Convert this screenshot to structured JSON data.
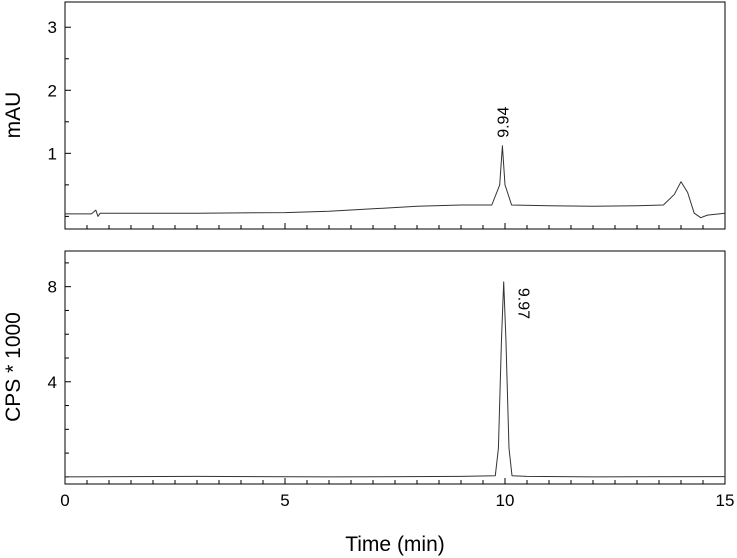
{
  "chart_data": {
    "type": "line",
    "xlabel": "Time (min)",
    "xlim": [
      0,
      15
    ],
    "x_ticks": [
      "0",
      "5",
      "10",
      "15"
    ],
    "panels": [
      {
        "ylabel": "mAU",
        "ylim": [
          -0.2,
          3.4
        ],
        "y_ticks": [
          "1",
          "2",
          "3"
        ],
        "y_tick_values": [
          1,
          2,
          3
        ],
        "peaks": [
          {
            "label": "9.94",
            "time": 9.94,
            "height": 1.12
          }
        ],
        "series": [
          {
            "x": [
              0,
              0.6,
              0.7,
              0.75,
              0.8,
              1.5,
              3,
              5,
              6,
              7,
              8,
              9,
              9.7,
              9.88,
              9.94,
              10.0,
              10.15,
              11,
              12,
              13,
              13.6,
              13.85,
              14.0,
              14.15,
              14.3,
              14.45,
              14.6,
              15
            ],
            "y": [
              0.04,
              0.04,
              0.1,
              0.0,
              0.05,
              0.05,
              0.05,
              0.06,
              0.08,
              0.12,
              0.16,
              0.18,
              0.18,
              0.5,
              1.12,
              0.5,
              0.18,
              0.17,
              0.16,
              0.17,
              0.18,
              0.35,
              0.55,
              0.38,
              0.05,
              -0.02,
              0.02,
              0.05
            ]
          }
        ]
      },
      {
        "ylabel": "CPS * 1000",
        "ylim": [
          -0.3,
          9.5
        ],
        "y_ticks": [
          "4",
          "8"
        ],
        "y_tick_values": [
          4,
          8
        ],
        "peaks": [
          {
            "label": "9.97",
            "time": 9.97,
            "height": 8.2
          }
        ],
        "series": [
          {
            "x": [
              0,
              3,
              6,
              9,
              9.78,
              9.85,
              9.92,
              9.97,
              10.02,
              10.09,
              10.16,
              10.5,
              12,
              15
            ],
            "y": [
              0.0,
              0.02,
              0.0,
              0.02,
              0.05,
              1.2,
              5.8,
              8.2,
              5.8,
              1.2,
              0.05,
              0.02,
              0.0,
              0.01
            ]
          }
        ]
      }
    ]
  }
}
